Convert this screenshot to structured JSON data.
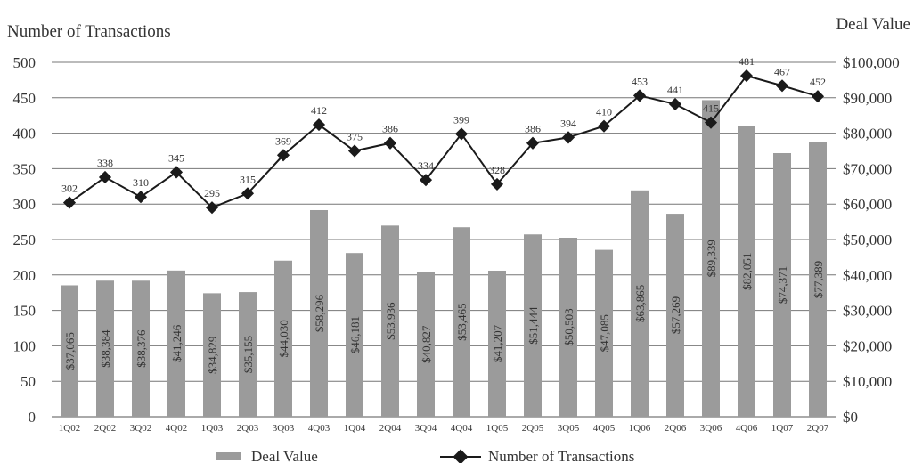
{
  "chart_data": {
    "type": "bar",
    "left_axis_title": "Number of Transactions",
    "right_axis_title": "Deal Value",
    "left_ticks": [
      "0",
      "50",
      "100",
      "150",
      "200",
      "250",
      "300",
      "350",
      "400",
      "450",
      "500"
    ],
    "right_ticks": [
      "$0",
      "$10,000",
      "$20,000",
      "$30,000",
      "$40,000",
      "$50,000",
      "$60,000",
      "$70,000",
      "$80,000",
      "$90,000",
      "$100,000"
    ],
    "left_ylim": [
      0,
      500
    ],
    "right_ylim": [
      0,
      100000
    ],
    "grid": true,
    "legend_position": "bottom",
    "categories": [
      "1Q02",
      "2Q02",
      "3Q02",
      "4Q02",
      "1Q03",
      "2Q03",
      "3Q03",
      "4Q03",
      "1Q04",
      "2Q04",
      "3Q04",
      "4Q04",
      "1Q05",
      "2Q05",
      "3Q05",
      "4Q05",
      "1Q06",
      "2Q06",
      "3Q06",
      "4Q06",
      "1Q07",
      "2Q07"
    ],
    "series": [
      {
        "name": "Deal Value",
        "type": "bar",
        "axis": "right",
        "color": "#9b9b9b",
        "values": [
          37065,
          38384,
          38376,
          41246,
          34829,
          35155,
          44030,
          58296,
          46181,
          53936,
          40827,
          53465,
          41207,
          51444,
          50503,
          47085,
          63865,
          57269,
          89339,
          82051,
          74371,
          77389
        ],
        "labels": [
          "$37,065",
          "$38,384",
          "$38,376",
          "$41,246",
          "$34,829",
          "$35,155",
          "$44,030",
          "$58,296",
          "$46,181",
          "$53,936",
          "$40,827",
          "$53,465",
          "$41,207",
          "$51,444",
          "$50,503",
          "$47,085",
          "$63,865",
          "$57,269",
          "$89,339",
          "$82,051",
          "$74,371",
          "$77,389"
        ]
      },
      {
        "name": "Number of Transactions",
        "type": "line",
        "axis": "left",
        "color": "#1a1a1a",
        "values": [
          302,
          338,
          310,
          345,
          295,
          315,
          369,
          412,
          375,
          386,
          334,
          399,
          328,
          386,
          394,
          410,
          453,
          441,
          415,
          481,
          467,
          452
        ],
        "labels": [
          "302",
          "338",
          "310",
          "345",
          "295",
          "315",
          "369",
          "412",
          "375",
          "386",
          "334",
          "399",
          "328",
          "386",
          "394",
          "410",
          "453",
          "441",
          "415",
          "481",
          "467",
          "452"
        ]
      }
    ]
  }
}
